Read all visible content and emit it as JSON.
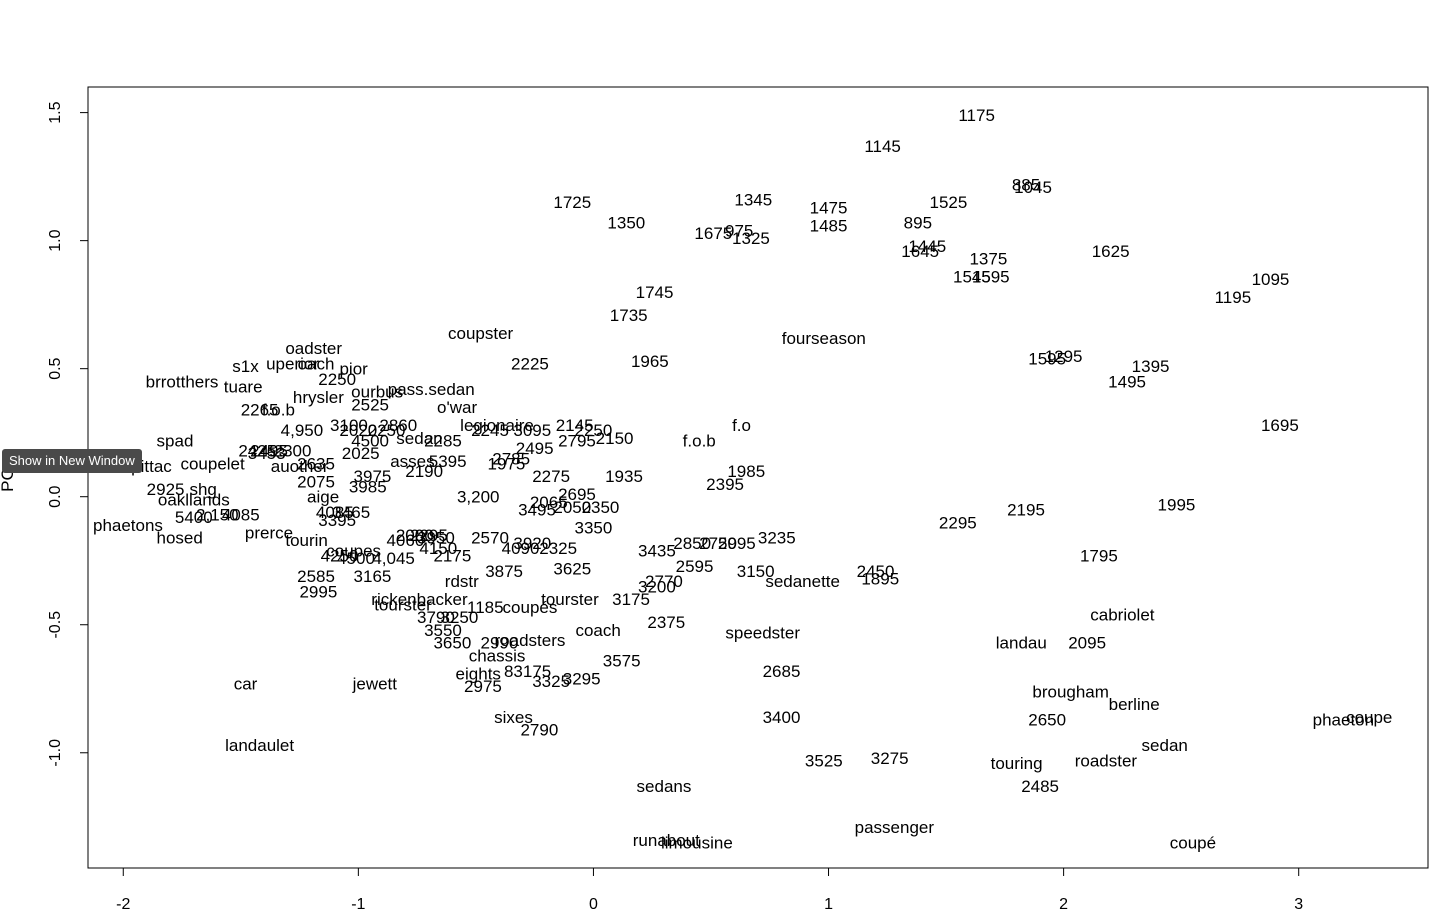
{
  "tooltip": {
    "text": "Show in New Window"
  },
  "chart_data": {
    "type": "scatter",
    "title": "",
    "xlabel": "",
    "ylabel": "PC",
    "xlim": [
      -2.15,
      3.55
    ],
    "ylim": [
      -1.45,
      1.6
    ],
    "x_ticks": [
      -2,
      -1,
      0,
      1,
      2,
      3
    ],
    "y_ticks": [
      -1.0,
      -0.5,
      0.0,
      0.5,
      1.0,
      1.5
    ],
    "grid": false,
    "points": [
      {
        "label": "1175",
        "x": 1.63,
        "y": 1.49
      },
      {
        "label": "1145",
        "x": 1.23,
        "y": 1.37
      },
      {
        "label": "885",
        "x": 1.84,
        "y": 1.22
      },
      {
        "label": "1045",
        "x": 1.87,
        "y": 1.21
      },
      {
        "label": "1525",
        "x": 1.51,
        "y": 1.15
      },
      {
        "label": "1345",
        "x": 0.68,
        "y": 1.16
      },
      {
        "label": "1475",
        "x": 1.0,
        "y": 1.13
      },
      {
        "label": "1725",
        "x": -0.09,
        "y": 1.15
      },
      {
        "label": "1350",
        "x": 0.14,
        "y": 1.07
      },
      {
        "label": "1485",
        "x": 1.0,
        "y": 1.06
      },
      {
        "label": "895",
        "x": 1.38,
        "y": 1.07
      },
      {
        "label": "1675",
        "x": 0.51,
        "y": 1.03
      },
      {
        "label": "975",
        "x": 0.62,
        "y": 1.04
      },
      {
        "label": "1325",
        "x": 0.67,
        "y": 1.01
      },
      {
        "label": "1445",
        "x": 1.42,
        "y": 0.98
      },
      {
        "label": "1645",
        "x": 1.39,
        "y": 0.96
      },
      {
        "label": "1625",
        "x": 2.2,
        "y": 0.96
      },
      {
        "label": "1375",
        "x": 1.68,
        "y": 0.93
      },
      {
        "label": "1545",
        "x": 1.61,
        "y": 0.86
      },
      {
        "label": "1595",
        "x": 1.69,
        "y": 0.86
      },
      {
        "label": "1095",
        "x": 2.88,
        "y": 0.85
      },
      {
        "label": "1745",
        "x": 0.26,
        "y": 0.8
      },
      {
        "label": "1195",
        "x": 2.72,
        "y": 0.78
      },
      {
        "label": "1735",
        "x": 0.15,
        "y": 0.71
      },
      {
        "label": "coupster",
        "x": -0.48,
        "y": 0.64
      },
      {
        "label": "fourseason",
        "x": 0.98,
        "y": 0.62
      },
      {
        "label": "oadster",
        "x": -1.19,
        "y": 0.58
      },
      {
        "label": "1595",
        "x": 1.93,
        "y": 0.54
      },
      {
        "label": "1295",
        "x": 2.0,
        "y": 0.55
      },
      {
        "label": "1965",
        "x": 0.24,
        "y": 0.53
      },
      {
        "label": "2225",
        "x": -0.27,
        "y": 0.52
      },
      {
        "label": "1395",
        "x": 2.37,
        "y": 0.51
      },
      {
        "label": "uperior",
        "x": -1.28,
        "y": 0.52
      },
      {
        "label": "oach",
        "x": -1.18,
        "y": 0.52
      },
      {
        "label": "s1x",
        "x": -1.48,
        "y": 0.51
      },
      {
        "label": "pior",
        "x": -1.02,
        "y": 0.5
      },
      {
        "label": "2250",
        "x": -1.09,
        "y": 0.46
      },
      {
        "label": "brrotthers",
        "x": -1.75,
        "y": 0.45
      },
      {
        "label": "1495",
        "x": 2.27,
        "y": 0.45
      },
      {
        "label": "tuare",
        "x": -1.49,
        "y": 0.43
      },
      {
        "label": "ourbus",
        "x": -0.92,
        "y": 0.41
      },
      {
        "label": "pass.sedan",
        "x": -0.69,
        "y": 0.42
      },
      {
        "label": "hrysler",
        "x": -1.17,
        "y": 0.39
      },
      {
        "label": "2525",
        "x": -0.95,
        "y": 0.36
      },
      {
        "label": "o'war",
        "x": -0.58,
        "y": 0.35
      },
      {
        "label": "2265",
        "x": -1.42,
        "y": 0.34
      },
      {
        "label": "f.o.b",
        "x": -1.34,
        "y": 0.34
      },
      {
        "label": "1695",
        "x": 2.92,
        "y": 0.28
      },
      {
        "label": "f.o",
        "x": 0.63,
        "y": 0.28
      },
      {
        "label": "legionaire",
        "x": -0.41,
        "y": 0.28
      },
      {
        "label": "3100",
        "x": -1.04,
        "y": 0.28
      },
      {
        "label": "2860",
        "x": -0.83,
        "y": 0.28
      },
      {
        "label": "2145",
        "x": -0.08,
        "y": 0.28
      },
      {
        "label": "4,950",
        "x": -1.24,
        "y": 0.26
      },
      {
        "label": "2020",
        "x": -1.0,
        "y": 0.26
      },
      {
        "label": "2250",
        "x": -0.88,
        "y": 0.26
      },
      {
        "label": "2245",
        "x": -0.44,
        "y": 0.26
      },
      {
        "label": "3095",
        "x": -0.26,
        "y": 0.26
      },
      {
        "label": "2250",
        "x": 0.0,
        "y": 0.26
      },
      {
        "label": "4500",
        "x": -0.95,
        "y": 0.22
      },
      {
        "label": "sedan",
        "x": -0.74,
        "y": 0.23
      },
      {
        "label": "2285",
        "x": -0.64,
        "y": 0.22
      },
      {
        "label": "2150",
        "x": 0.09,
        "y": 0.23
      },
      {
        "label": "f.o.b",
        "x": 0.45,
        "y": 0.22
      },
      {
        "label": "spad",
        "x": -1.78,
        "y": 0.22
      },
      {
        "label": "2795",
        "x": -0.07,
        "y": 0.22
      },
      {
        "label": "2495",
        "x": -0.25,
        "y": 0.19
      },
      {
        "label": "2025",
        "x": -0.99,
        "y": 0.17
      },
      {
        "label": "2495",
        "x": -1.38,
        "y": 0.18
      },
      {
        "label": "2300",
        "x": -1.28,
        "y": 0.18
      },
      {
        "label": "2425",
        "x": -1.43,
        "y": 0.18
      },
      {
        "label": "3453",
        "x": -1.39,
        "y": 0.17
      },
      {
        "label": "2785",
        "x": -0.35,
        "y": 0.15
      },
      {
        "label": "asses",
        "x": -0.77,
        "y": 0.14
      },
      {
        "label": "5395",
        "x": -0.62,
        "y": 0.14
      },
      {
        "label": "1975",
        "x": -0.37,
        "y": 0.13
      },
      {
        "label": "coupelet",
        "x": -1.62,
        "y": 0.13
      },
      {
        "label": "apittac",
        "x": -1.9,
        "y": 0.12
      },
      {
        "label": "auother",
        "x": -1.25,
        "y": 0.12
      },
      {
        "label": "2635",
        "x": -1.18,
        "y": 0.13
      },
      {
        "label": "2190",
        "x": -0.72,
        "y": 0.1
      },
      {
        "label": "1985",
        "x": 0.65,
        "y": 0.1
      },
      {
        "label": "2275",
        "x": -0.18,
        "y": 0.08
      },
      {
        "label": "1935",
        "x": 0.13,
        "y": 0.08
      },
      {
        "label": "2075",
        "x": -1.18,
        "y": 0.06
      },
      {
        "label": "3975",
        "x": -0.94,
        "y": 0.08
      },
      {
        "label": "2395",
        "x": 0.56,
        "y": 0.05
      },
      {
        "label": "3985",
        "x": -0.96,
        "y": 0.04
      },
      {
        "label": "2925",
        "x": -1.82,
        "y": 0.03
      },
      {
        "label": "shg",
        "x": -1.66,
        "y": 0.03
      },
      {
        "label": "oakllands",
        "x": -1.7,
        "y": -0.01
      },
      {
        "label": "aige",
        "x": -1.15,
        "y": 0.0
      },
      {
        "label": "3,200",
        "x": -0.49,
        "y": 0.0
      },
      {
        "label": "2695",
        "x": -0.07,
        "y": 0.01
      },
      {
        "label": "2065",
        "x": -0.19,
        "y": -0.02
      },
      {
        "label": "2050",
        "x": -0.09,
        "y": -0.04
      },
      {
        "label": "2350",
        "x": 0.03,
        "y": -0.04
      },
      {
        "label": "3495",
        "x": -0.24,
        "y": -0.05
      },
      {
        "label": "1995",
        "x": 2.48,
        "y": -0.03
      },
      {
        "label": "2195",
        "x": 1.84,
        "y": -0.05
      },
      {
        "label": "5400",
        "x": -1.7,
        "y": -0.08
      },
      {
        "label": "2,150",
        "x": -1.6,
        "y": -0.07
      },
      {
        "label": "4085",
        "x": -1.5,
        "y": -0.07
      },
      {
        "label": "4085",
        "x": -1.1,
        "y": -0.06
      },
      {
        "label": "3465",
        "x": -1.03,
        "y": -0.06
      },
      {
        "label": "3395",
        "x": -1.09,
        "y": -0.09
      },
      {
        "label": "2295",
        "x": 1.55,
        "y": -0.1
      },
      {
        "label": "phaetons",
        "x": -1.98,
        "y": -0.11
      },
      {
        "label": "3350",
        "x": 0.0,
        "y": -0.12
      },
      {
        "label": "prerce",
        "x": -1.38,
        "y": -0.14
      },
      {
        "label": "hosed",
        "x": -1.76,
        "y": -0.16
      },
      {
        "label": "2000",
        "x": -0.76,
        "y": -0.15
      },
      {
        "label": "2295",
        "x": -0.7,
        "y": -0.15
      },
      {
        "label": "3950",
        "x": -0.67,
        "y": -0.16
      },
      {
        "label": "4060",
        "x": -0.8,
        "y": -0.17
      },
      {
        "label": "2570",
        "x": -0.44,
        "y": -0.16
      },
      {
        "label": "tourin",
        "x": -1.22,
        "y": -0.17
      },
      {
        "label": "3235",
        "x": 0.78,
        "y": -0.16
      },
      {
        "label": "2850",
        "x": 0.42,
        "y": -0.18
      },
      {
        "label": "2750",
        "x": 0.53,
        "y": -0.18
      },
      {
        "label": "2995",
        "x": 0.61,
        "y": -0.18
      },
      {
        "label": "3920",
        "x": -0.26,
        "y": -0.18
      },
      {
        "label": "4090",
        "x": -0.31,
        "y": -0.2
      },
      {
        "label": "2325",
        "x": -0.15,
        "y": -0.2
      },
      {
        "label": "4150",
        "x": -0.66,
        "y": -0.2
      },
      {
        "label": "3435",
        "x": 0.27,
        "y": -0.21
      },
      {
        "label": "coupes",
        "x": -1.02,
        "y": -0.21
      },
      {
        "label": "4250",
        "x": -1.08,
        "y": -0.23
      },
      {
        "label": "4500",
        "x": -1.01,
        "y": -0.24
      },
      {
        "label": "4,045",
        "x": -0.85,
        "y": -0.24
      },
      {
        "label": "2175",
        "x": -0.6,
        "y": -0.23
      },
      {
        "label": "1795",
        "x": 2.15,
        "y": -0.23
      },
      {
        "label": "2595",
        "x": 0.43,
        "y": -0.27
      },
      {
        "label": "3625",
        "x": -0.09,
        "y": -0.28
      },
      {
        "label": "3875",
        "x": -0.38,
        "y": -0.29
      },
      {
        "label": "3150",
        "x": 0.69,
        "y": -0.29
      },
      {
        "label": "2450",
        "x": 1.2,
        "y": -0.29
      },
      {
        "label": "2585",
        "x": -1.18,
        "y": -0.31
      },
      {
        "label": "3165",
        "x": -0.94,
        "y": -0.31
      },
      {
        "label": "sedanette",
        "x": 0.89,
        "y": -0.33
      },
      {
        "label": "1895",
        "x": 1.22,
        "y": -0.32
      },
      {
        "label": "rdstr",
        "x": -0.56,
        "y": -0.33
      },
      {
        "label": "2770",
        "x": 0.3,
        "y": -0.33
      },
      {
        "label": "3200",
        "x": 0.27,
        "y": -0.35
      },
      {
        "label": "2995",
        "x": -1.17,
        "y": -0.37
      },
      {
        "label": "rickenbacker",
        "x": -0.74,
        "y": -0.4
      },
      {
        "label": "tourster",
        "x": -0.1,
        "y": -0.4
      },
      {
        "label": "3175",
        "x": 0.16,
        "y": -0.4
      },
      {
        "label": "tourster",
        "x": -0.81,
        "y": -0.42
      },
      {
        "label": "1185",
        "x": -0.46,
        "y": -0.43
      },
      {
        "label": "coupés",
        "x": -0.27,
        "y": -0.43
      },
      {
        "label": "cabriolet",
        "x": 2.25,
        "y": -0.46
      },
      {
        "label": "3790",
        "x": -0.67,
        "y": -0.47
      },
      {
        "label": "3250",
        "x": -0.57,
        "y": -0.47
      },
      {
        "label": "2375",
        "x": 0.31,
        "y": -0.49
      },
      {
        "label": "3550",
        "x": -0.64,
        "y": -0.52
      },
      {
        "label": "coach",
        "x": 0.02,
        "y": -0.52
      },
      {
        "label": "speedster",
        "x": 0.72,
        "y": -0.53
      },
      {
        "label": "roadsters",
        "x": -0.27,
        "y": -0.56
      },
      {
        "label": "2990",
        "x": -0.4,
        "y": -0.57
      },
      {
        "label": "3650",
        "x": -0.6,
        "y": -0.57
      },
      {
        "label": "landau",
        "x": 1.82,
        "y": -0.57
      },
      {
        "label": "2095",
        "x": 2.1,
        "y": -0.57
      },
      {
        "label": "chassis",
        "x": -0.41,
        "y": -0.62
      },
      {
        "label": "3575",
        "x": 0.12,
        "y": -0.64
      },
      {
        "label": "2685",
        "x": 0.8,
        "y": -0.68
      },
      {
        "label": "eights",
        "x": -0.49,
        "y": -0.69
      },
      {
        "label": "83175",
        "x": -0.28,
        "y": -0.68
      },
      {
        "label": "3325",
        "x": -0.18,
        "y": -0.72
      },
      {
        "label": "3295",
        "x": -0.05,
        "y": -0.71
      },
      {
        "label": "2975",
        "x": -0.47,
        "y": -0.74
      },
      {
        "label": "car",
        "x": -1.48,
        "y": -0.73
      },
      {
        "label": "jewett",
        "x": -0.93,
        "y": -0.73
      },
      {
        "label": "brougham",
        "x": 2.03,
        "y": -0.76
      },
      {
        "label": "berline",
        "x": 2.3,
        "y": -0.81
      },
      {
        "label": "2650",
        "x": 1.93,
        "y": -0.87
      },
      {
        "label": "phaeton",
        "x": 3.19,
        "y": -0.87
      },
      {
        "label": "coupe",
        "x": 3.3,
        "y": -0.86
      },
      {
        "label": "3400",
        "x": 0.8,
        "y": -0.86
      },
      {
        "label": "sixes",
        "x": -0.34,
        "y": -0.86
      },
      {
        "label": "2790",
        "x": -0.23,
        "y": -0.91
      },
      {
        "label": "landaulet",
        "x": -1.42,
        "y": -0.97
      },
      {
        "label": "sedan",
        "x": 2.43,
        "y": -0.97
      },
      {
        "label": "3525",
        "x": 0.98,
        "y": -1.03
      },
      {
        "label": "3275",
        "x": 1.26,
        "y": -1.02
      },
      {
        "label": "touring",
        "x": 1.8,
        "y": -1.04
      },
      {
        "label": "roadster",
        "x": 2.18,
        "y": -1.03
      },
      {
        "label": "2485",
        "x": 1.9,
        "y": -1.13
      },
      {
        "label": "sedans",
        "x": 0.3,
        "y": -1.13
      },
      {
        "label": "passenger",
        "x": 1.28,
        "y": -1.29
      },
      {
        "label": "runabout",
        "x": 0.31,
        "y": -1.34
      },
      {
        "label": "limousine",
        "x": 0.44,
        "y": -1.35
      },
      {
        "label": "coupé",
        "x": 2.55,
        "y": -1.35
      }
    ]
  }
}
